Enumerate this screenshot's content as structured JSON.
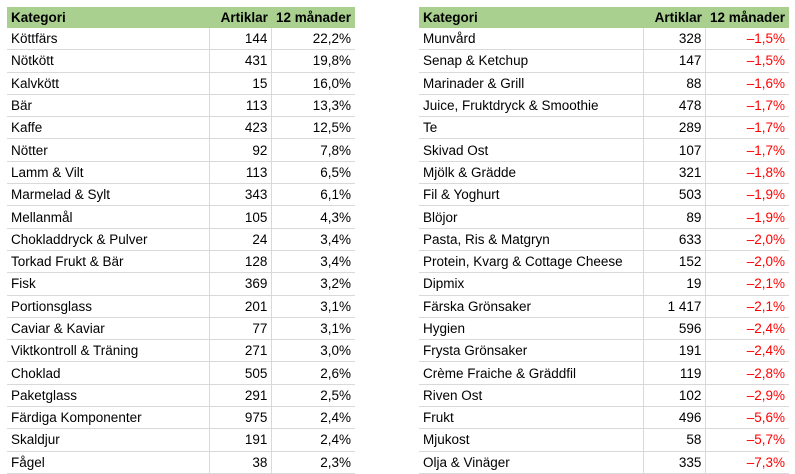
{
  "left_table": {
    "headers": [
      "Kategori",
      "Artiklar",
      "12 månader"
    ],
    "rows": [
      [
        "Köttfärs",
        "144",
        "22,2%"
      ],
      [
        "Nötkött",
        "431",
        "19,8%"
      ],
      [
        "Kalvkött",
        "15",
        "16,0%"
      ],
      [
        "Bär",
        "113",
        "13,3%"
      ],
      [
        "Kaffe",
        "423",
        "12,5%"
      ],
      [
        "Nötter",
        "92",
        "7,8%"
      ],
      [
        "Lamm & Vilt",
        "113",
        "6,5%"
      ],
      [
        "Marmelad & Sylt",
        "343",
        "6,1%"
      ],
      [
        "Mellanmål",
        "105",
        "4,3%"
      ],
      [
        "Chokladdryck & Pulver",
        "24",
        "3,4%"
      ],
      [
        "Torkad Frukt & Bär",
        "128",
        "3,4%"
      ],
      [
        "Fisk",
        "369",
        "3,2%"
      ],
      [
        "Portionsglass",
        "201",
        "3,1%"
      ],
      [
        "Caviar & Kaviar",
        "77",
        "3,1%"
      ],
      [
        "Viktkontroll & Träning",
        "271",
        "3,0%"
      ],
      [
        "Choklad",
        "505",
        "2,6%"
      ],
      [
        "Paketglass",
        "291",
        "2,5%"
      ],
      [
        "Färdiga Komponenter",
        "975",
        "2,4%"
      ],
      [
        "Skaldjur",
        "191",
        "2,4%"
      ],
      [
        "Fågel",
        "38",
        "2,3%"
      ]
    ]
  },
  "right_table": {
    "headers": [
      "Kategori",
      "Artiklar",
      "12 månader"
    ],
    "rows": [
      [
        "Munvård",
        "328",
        "–1,5%"
      ],
      [
        "Senap & Ketchup",
        "147",
        "–1,5%"
      ],
      [
        "Marinader & Grill",
        "88",
        "–1,6%"
      ],
      [
        "Juice, Fruktdryck & Smoothie",
        "478",
        "–1,7%"
      ],
      [
        "Te",
        "289",
        "–1,7%"
      ],
      [
        "Skivad Ost",
        "107",
        "–1,7%"
      ],
      [
        "Mjölk & Grädde",
        "321",
        "–1,8%"
      ],
      [
        "Fil & Yoghurt",
        "503",
        "–1,9%"
      ],
      [
        "Blöjor",
        "89",
        "–1,9%"
      ],
      [
        "Pasta, Ris & Matgryn",
        "633",
        "–2,0%"
      ],
      [
        "Protein, Kvarg & Cottage Cheese",
        "152",
        "–2,0%"
      ],
      [
        "Dipmix",
        "19",
        "–2,1%"
      ],
      [
        "Färska Grönsaker",
        "1 417",
        "–2,1%"
      ],
      [
        "Hygien",
        "596",
        "–2,4%"
      ],
      [
        "Frysta Grönsaker",
        "191",
        "–2,4%"
      ],
      [
        "Crème Fraiche & Gräddfil",
        "119",
        "–2,8%"
      ],
      [
        "Riven Ost",
        "102",
        "–2,9%"
      ],
      [
        "Frukt",
        "496",
        "–5,6%"
      ],
      [
        "Mjukost",
        "58",
        "–5,7%"
      ],
      [
        "Olja & Vinäger",
        "335",
        "–7,3%"
      ]
    ]
  },
  "colors": {
    "header_bg": "#a9d08e",
    "negative_text": "#ff0000",
    "grid_line": "#d9d9d9"
  }
}
